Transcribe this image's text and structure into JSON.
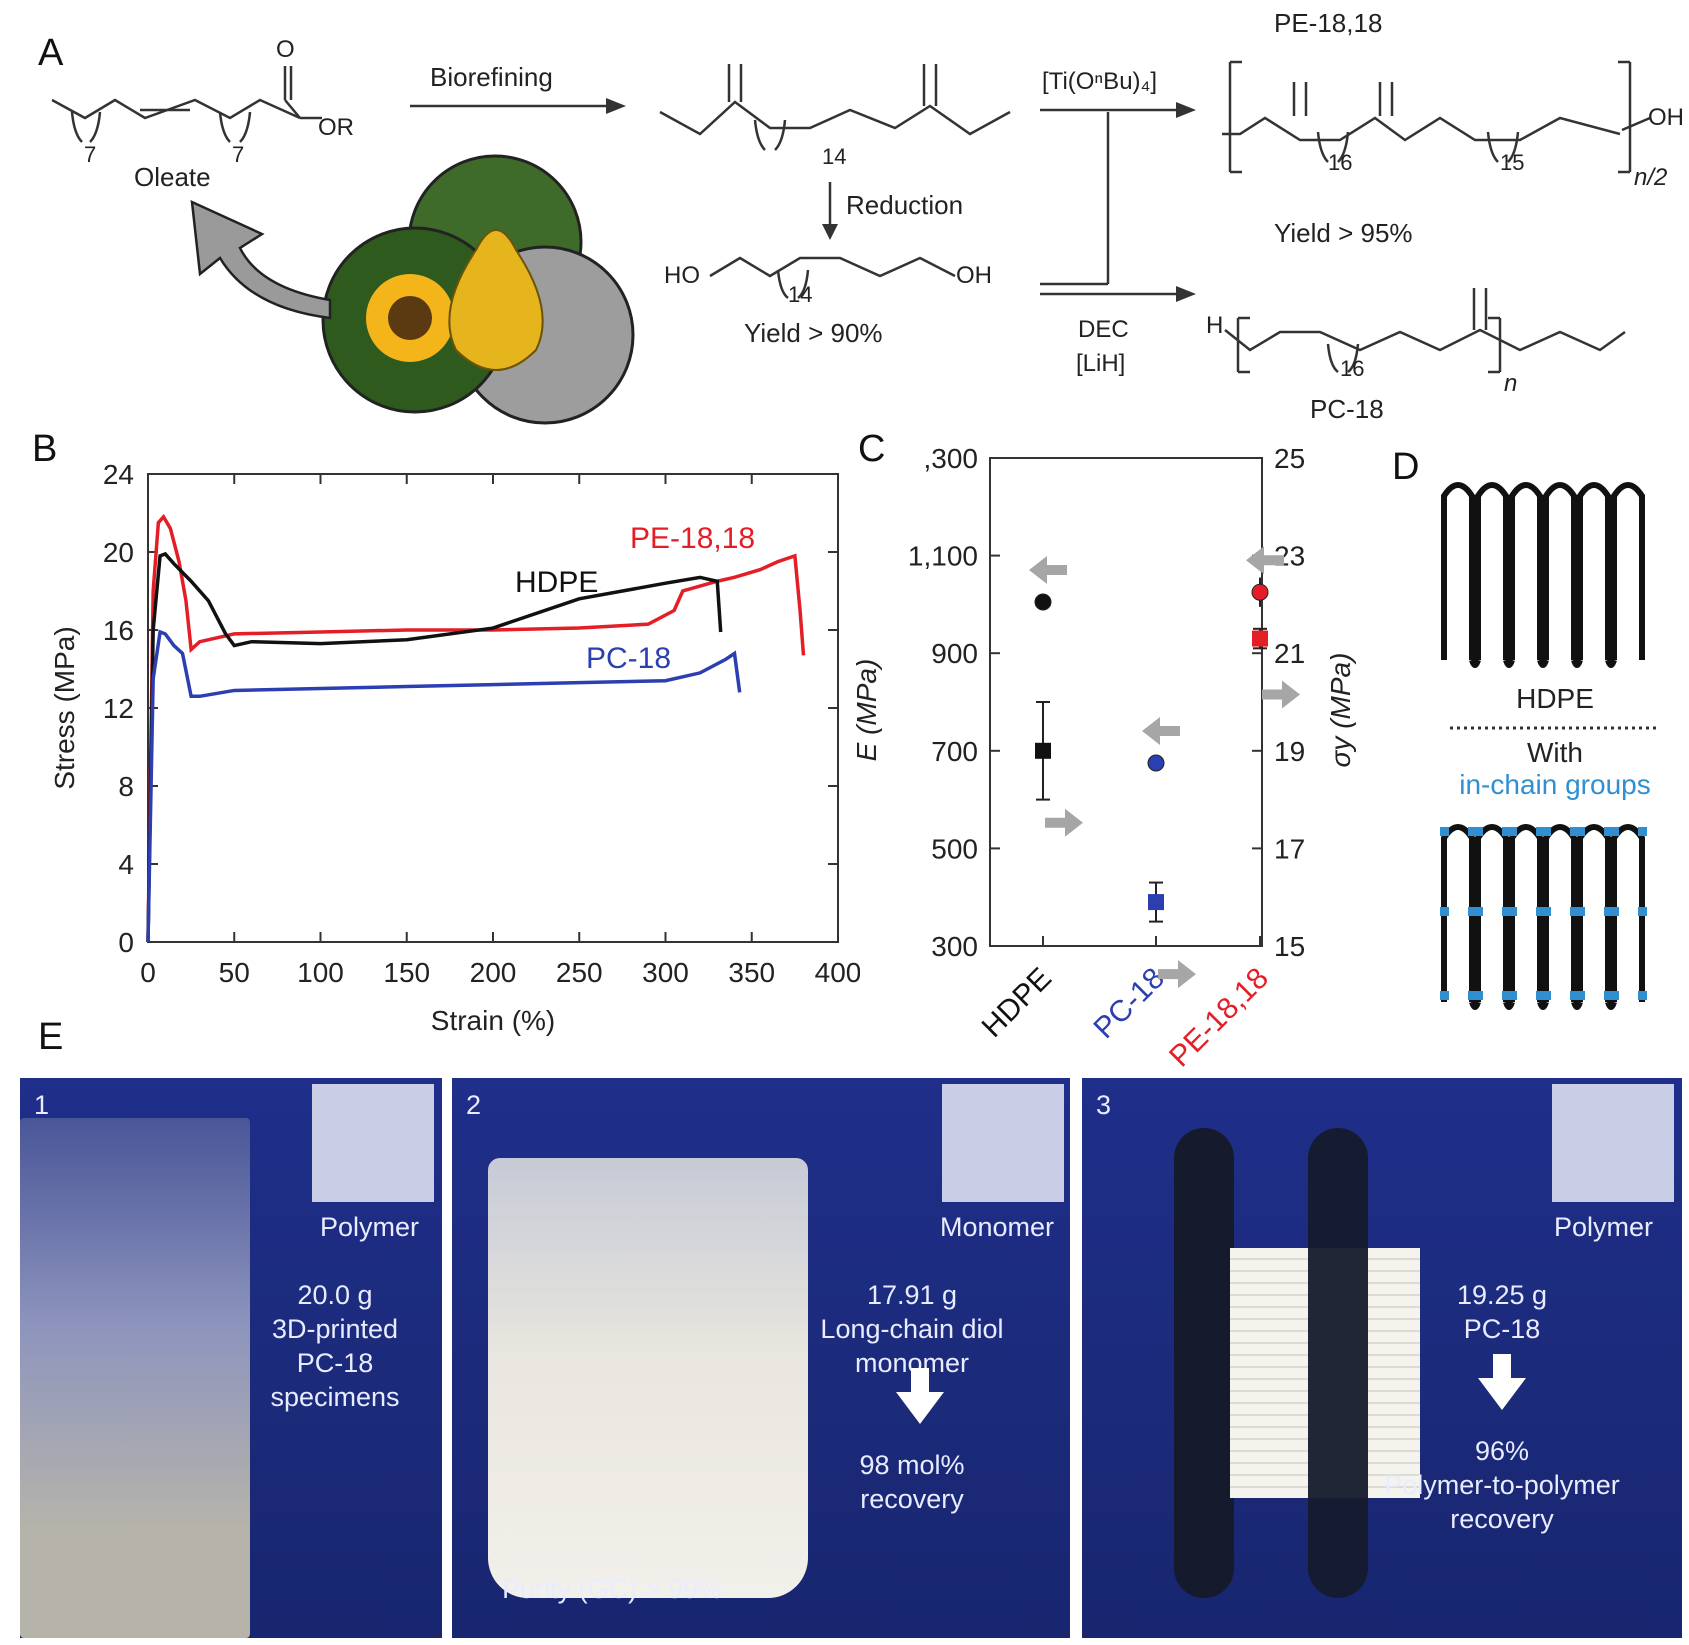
{
  "panel_labels": {
    "a": "A",
    "b": "B",
    "c": "C",
    "d": "D",
    "e": "E"
  },
  "scheme": {
    "oleate_label": "Oleate",
    "oleate_sub1": "7",
    "oleate_sub2": "7",
    "oleate_or": "OR",
    "oleate_o": "O",
    "biorefining": "Biorefining",
    "diester_sub": "14",
    "reduction": "Reduction",
    "diol_ho": "HO",
    "diol_oh": "OH",
    "diol_sub": "14",
    "diol_yield": "Yield > 90%",
    "catalyst": "[Ti(OⁿBu)₄]",
    "pe_title": "PE-18,18",
    "pe_sub1": "16",
    "pe_sub2": "15",
    "pe_n": "n/2",
    "pe_oh": "OH",
    "pe_yield": "Yield > 95%",
    "dec": "DEC",
    "lih": "[LiH]",
    "pc_h": "H",
    "pc_sub": "16",
    "pc_n": "n",
    "pc_title": "PC-18"
  },
  "panel_b": {
    "xlabel": "Strain (%)",
    "ylabel": "Stress (MPa)",
    "x_ticks": [
      "0",
      "50",
      "100",
      "150",
      "200",
      "250",
      "300",
      "350",
      "400"
    ],
    "y_ticks": [
      "0",
      "4",
      "8",
      "12",
      "16",
      "20",
      "24"
    ],
    "labels": {
      "pe": "PE-18,18",
      "hdpe": "HDPE",
      "pc": "PC-18"
    },
    "colors": {
      "pe": "#e41e26",
      "hdpe": "#111111",
      "pc": "#2b3fb0"
    }
  },
  "panel_c": {
    "left_ylabel": "E (MPa)",
    "right_ylabel": "σy (MPa)",
    "left_ticks": [
      ",300",
      "1,100",
      "900",
      "700",
      "500",
      "300"
    ],
    "right_ticks": [
      "25",
      "23",
      "21",
      "19",
      "17",
      "15"
    ],
    "categories": [
      "HDPE",
      "PC-18",
      "PE-18,18"
    ],
    "category_colors": [
      "#111111",
      "#2b3fb0",
      "#e41e26"
    ]
  },
  "panel_d": {
    "hdpe": "HDPE",
    "with": "With",
    "in_chain": "in-chain groups",
    "accent": "#2f8fd0"
  },
  "panel_e": {
    "box1": {
      "num": "1",
      "inset": "Polymer",
      "t1": "20.0 g",
      "t2": "3D-printed",
      "t3": "PC-18",
      "t4": "specimens"
    },
    "box2": {
      "num": "2",
      "inset": "Monomer",
      "t1": "17.91 g",
      "t2": "Long-chain diol",
      "t3": "monomer",
      "t4": "98 mol%",
      "t5": "recovery",
      "purity": "Purity (GC) > 99%"
    },
    "box3": {
      "num": "3",
      "inset": "Polymer",
      "t1": "19.25 g",
      "t2": "PC-18",
      "t3": "96%",
      "t4": "Polymer-to-polymer",
      "t5": "recovery"
    }
  },
  "chart_data": [
    {
      "type": "line",
      "xlabel": "Strain (%)",
      "ylabel": "Stress (MPa)",
      "xlim": [
        0,
        400
      ],
      "ylim": [
        0,
        24
      ],
      "series": [
        {
          "name": "PE-18,18",
          "x": [
            0,
            3,
            6,
            9,
            13,
            18,
            22,
            25,
            30,
            50,
            100,
            150,
            200,
            250,
            290,
            305,
            310,
            330,
            340,
            355,
            365,
            375,
            378,
            380
          ],
          "y": [
            0,
            18,
            21.5,
            21.8,
            21.2,
            19.5,
            17.5,
            15.0,
            15.4,
            15.8,
            15.9,
            16.0,
            16.0,
            16.1,
            16.3,
            17.0,
            18.0,
            18.5,
            18.7,
            19.1,
            19.5,
            19.8,
            17,
            14.7
          ]
        },
        {
          "name": "HDPE",
          "x": [
            0,
            3,
            7,
            10,
            15,
            25,
            35,
            45,
            50,
            60,
            100,
            150,
            200,
            250,
            300,
            320,
            330,
            332
          ],
          "y": [
            0,
            16,
            19.8,
            19.9,
            19.4,
            18.5,
            17.5,
            15.8,
            15.2,
            15.4,
            15.3,
            15.5,
            16.1,
            17.6,
            18.4,
            18.7,
            18.5,
            15.9
          ]
        },
        {
          "name": "PC-18",
          "x": [
            0,
            3,
            7,
            10,
            15,
            20,
            25,
            30,
            50,
            100,
            150,
            200,
            250,
            300,
            320,
            335,
            340,
            343
          ],
          "y": [
            0,
            13.5,
            15.9,
            15.8,
            15.2,
            14.8,
            12.6,
            12.6,
            12.9,
            13.0,
            13.1,
            13.2,
            13.3,
            13.4,
            13.8,
            14.5,
            14.8,
            12.8
          ]
        }
      ]
    },
    {
      "type": "scatter",
      "categories": [
        "HDPE",
        "PC-18",
        "PE-18,18"
      ],
      "left_ylim": [
        300,
        1300
      ],
      "right_ylim": [
        15,
        25
      ],
      "series": [
        {
          "name": "E (MPa)",
          "values": [
            1005,
            675,
            1025
          ],
          "errors": [
            15,
            15,
            30
          ]
        },
        {
          "name": "σy (MPa)",
          "values": [
            19.0,
            15.9,
            21.3
          ],
          "errors": [
            1.0,
            0.4,
            0.2
          ]
        }
      ]
    }
  ]
}
